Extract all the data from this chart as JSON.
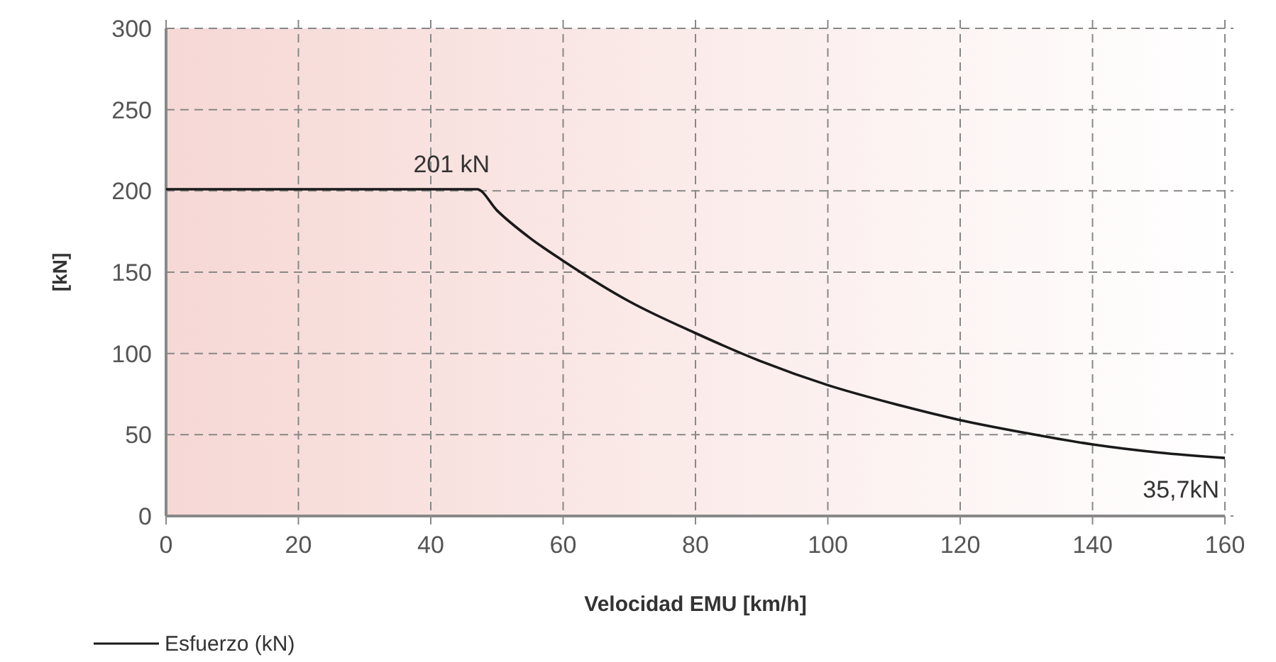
{
  "chart_data": {
    "type": "line",
    "xlabel": "Velocidad EMU [km/h]",
    "ylabel": "[kN]",
    "x": [
      0,
      47,
      50,
      55,
      60,
      70,
      80,
      90,
      100,
      110,
      120,
      130,
      140,
      150,
      160
    ],
    "series": [
      {
        "name": "Esfuerzo (kN)",
        "color": "#1a1a1a",
        "values": [
          201,
          201,
          188,
          171,
          157,
          132,
          112.5,
          95,
          80.5,
          69,
          59,
          51,
          44,
          39,
          35.7
        ]
      }
    ],
    "xlim": [
      0,
      160
    ],
    "xticks": [
      0,
      20,
      40,
      60,
      80,
      100,
      120,
      140,
      160
    ],
    "ylim": [
      0,
      300
    ],
    "yticks": [
      0,
      50,
      100,
      150,
      200,
      250,
      300
    ],
    "grid": true,
    "legend": "bottom left",
    "marker": "none",
    "line_style": "solid",
    "annotations": [
      {
        "text": "201 kN",
        "x": 47,
        "y": 201
      },
      {
        "text": "35,7kN",
        "x": 160,
        "y": 35.7
      }
    ]
  }
}
